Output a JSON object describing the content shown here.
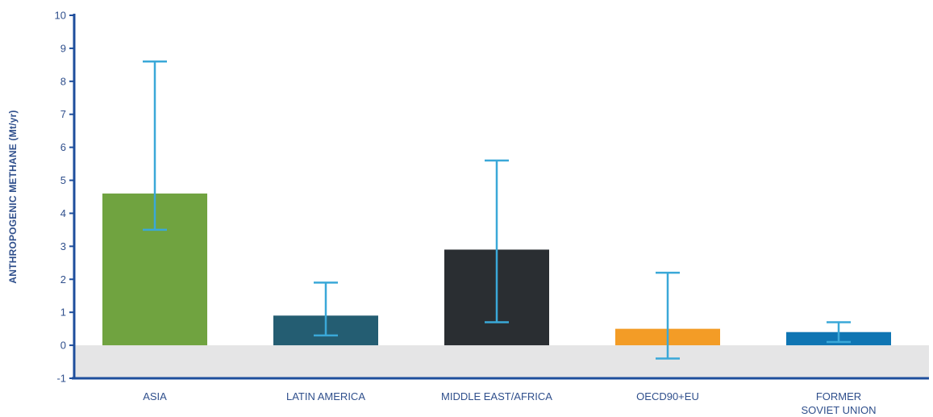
{
  "chart_data": {
    "type": "bar",
    "ylabel": "ANTHROPOGENIC METHANE (Mt/yr)",
    "xlabel": "",
    "ylim": [
      -1,
      10
    ],
    "yticks": [
      -1,
      0,
      1,
      2,
      3,
      4,
      5,
      6,
      7,
      8,
      9,
      10
    ],
    "grid": false,
    "negative_region_shaded": true,
    "categories": [
      {
        "label_lines": [
          "ASIA"
        ],
        "value": 4.6,
        "error_low": 3.5,
        "error_high": 8.6,
        "color": "#70a340"
      },
      {
        "label_lines": [
          "LATIN AMERICA"
        ],
        "value": 0.9,
        "error_low": 0.3,
        "error_high": 1.9,
        "color": "#245d72"
      },
      {
        "label_lines": [
          "MIDDLE EAST/AFRICA"
        ],
        "value": 2.9,
        "error_low": 0.7,
        "error_high": 5.6,
        "color": "#2a2e32"
      },
      {
        "label_lines": [
          "OECD90+EU"
        ],
        "value": 0.5,
        "error_low": -0.4,
        "error_high": 2.2,
        "color": "#f39c26"
      },
      {
        "label_lines": [
          "FORMER",
          "SOVIET UNION"
        ],
        "value": 0.4,
        "error_low": 0.1,
        "error_high": 0.7,
        "color": "#0f75b3"
      }
    ],
    "error_bar_color": "#3aa8d8",
    "axis_color": "#1e4e9c",
    "shade_color": "#e5e5e6"
  }
}
